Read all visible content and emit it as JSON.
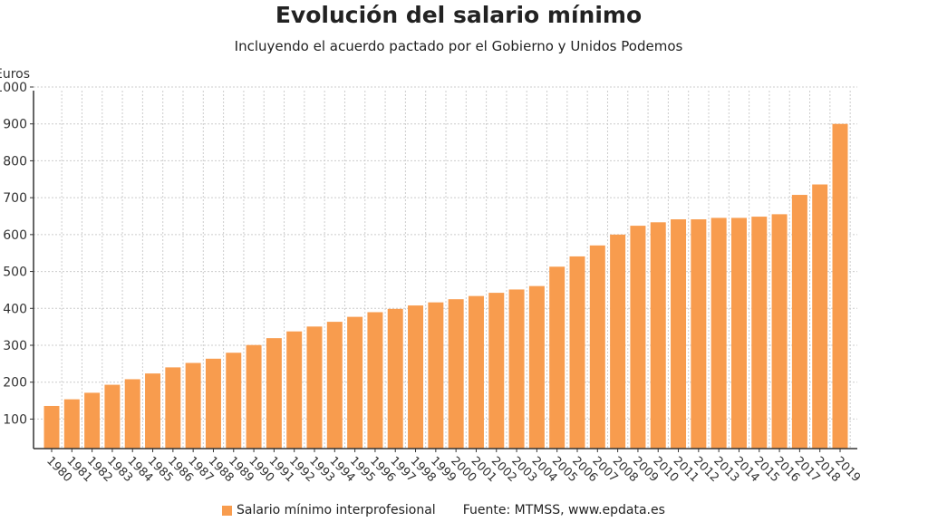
{
  "chart_data": {
    "type": "bar",
    "title": "Evolución del salario mínimo",
    "subtitle": "Incluyendo el acuerdo pactado por el Gobierno y Unidos Podemos",
    "ylabel": "Euros",
    "xlabel": "",
    "ylim": [
      20,
      1000
    ],
    "yticks": [
      100,
      200,
      300,
      400,
      500,
      600,
      700,
      800,
      900,
      1000
    ],
    "grid": true,
    "legend_placement": "bottom",
    "categories": [
      "1980",
      "1981",
      "1982",
      "1983",
      "1984",
      "1985",
      "1986",
      "1987",
      "1988",
      "1989",
      "1990",
      "1991",
      "1992",
      "1993",
      "1994",
      "1995",
      "1996",
      "1997",
      "1998",
      "1999",
      "2000",
      "2001",
      "2002",
      "2003",
      "2004",
      "2005",
      "2006",
      "2007",
      "2008",
      "2009",
      "2010",
      "2011",
      "2012",
      "2013",
      "2014",
      "2015",
      "2016",
      "2017",
      "2018",
      "2019"
    ],
    "series": [
      {
        "name": "Salario mínimo interprofesional",
        "color": "#f89c4e",
        "values": [
          135.5,
          153.6,
          171.3,
          193.0,
          208.0,
          223.6,
          240.1,
          252.2,
          263.6,
          279.8,
          300.7,
          319.3,
          337.6,
          350.8,
          363.6,
          377.1,
          389.7,
          398.7,
          407.9,
          416.3,
          424.8,
          433.5,
          442.2,
          451.2,
          460.5,
          513.0,
          540.9,
          570.6,
          600.0,
          624.0,
          633.3,
          641.4,
          641.4,
          645.3,
          645.3,
          648.6,
          655.2,
          707.6,
          735.9,
          900.0
        ]
      }
    ],
    "source": "Fuente: MTMSS, www.epdata.es"
  }
}
